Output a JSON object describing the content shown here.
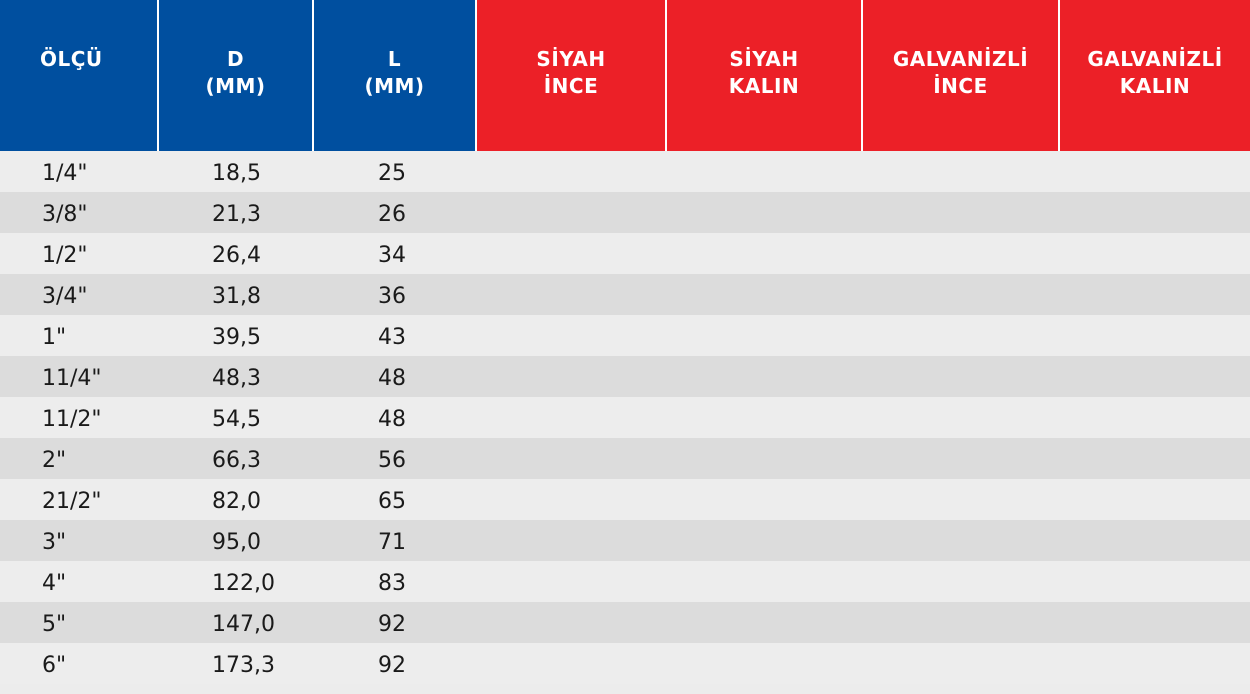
{
  "headers": {
    "olcu": "ÖLÇÜ",
    "d": "D\n(MM)",
    "l": "L\n(MM)",
    "siyah_ince": "SİYAH\nİNCE",
    "siyah_kalin": "SİYAH\nKALIN",
    "galvanizli_ince": "GALVANİZLİ\nİNCE",
    "galvanizli_kalin": "GALVANİZLİ\nKALIN"
  },
  "colors": {
    "header_blue": "#004f9f",
    "header_red": "#ec2027",
    "row_light": "#ededed",
    "row_dark": "#dcdcdc"
  },
  "rows": [
    {
      "size": "1/4\"",
      "d": "18,5",
      "l": "25"
    },
    {
      "size": "3/8\"",
      "d": "21,3",
      "l": "26"
    },
    {
      "size": "1/2\"",
      "d": "26,4",
      "l": "34"
    },
    {
      "size": "3/4\"",
      "d": "31,8",
      "l": "36"
    },
    {
      "size": "1\"",
      "d": "39,5",
      "l": "43"
    },
    {
      "size": "11/4\"",
      "d": "48,3",
      "l": "48"
    },
    {
      "size": "11/2\"",
      "d": "54,5",
      "l": "48"
    },
    {
      "size": "2\"",
      "d": "66,3",
      "l": "56"
    },
    {
      "size": "21/2\"",
      "d": "82,0",
      "l": "65"
    },
    {
      "size": "3\"",
      "d": "95,0",
      "l": "71"
    },
    {
      "size": "4\"",
      "d": "122,0",
      "l": "83"
    },
    {
      "size": "5\"",
      "d": "147,0",
      "l": "92"
    },
    {
      "size": "6\"",
      "d": "173,3",
      "l": "92"
    }
  ]
}
